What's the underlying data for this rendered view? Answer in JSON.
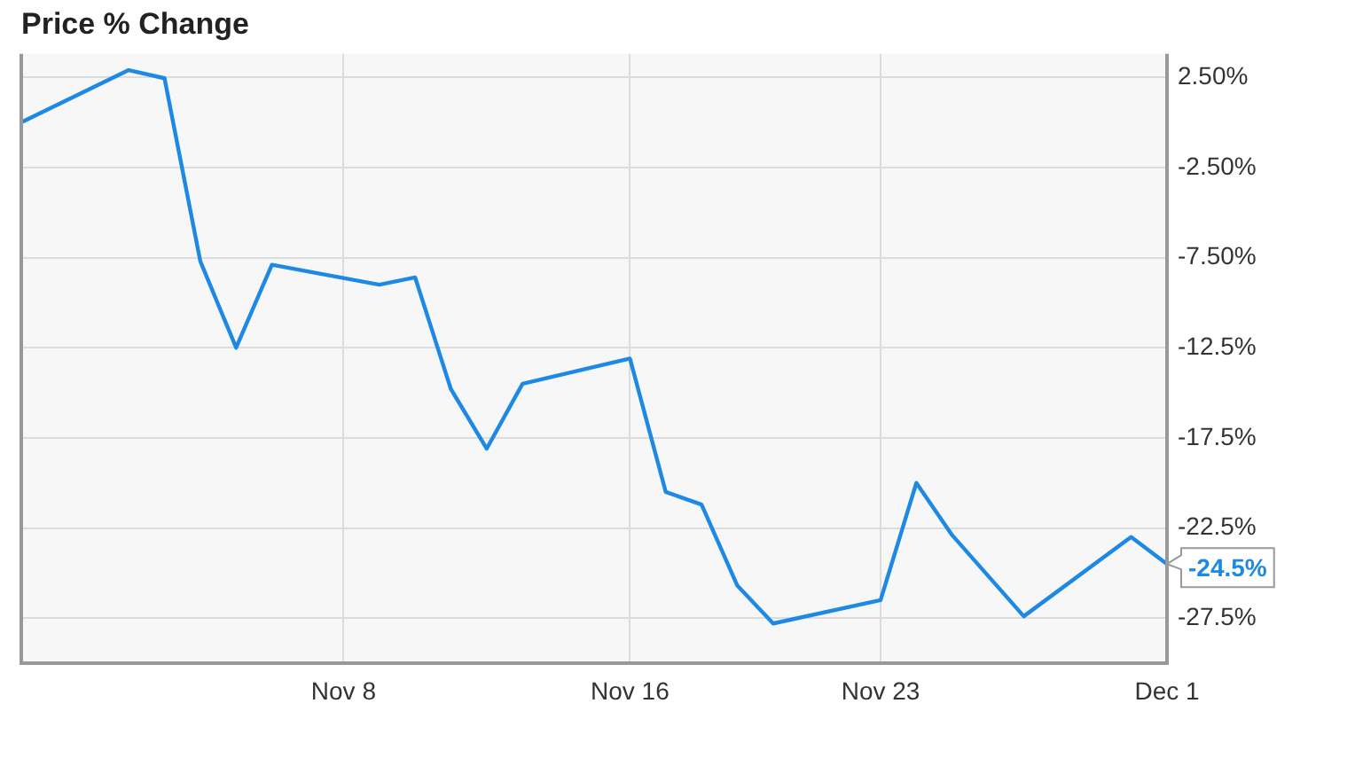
{
  "chart_data": {
    "type": "line",
    "title": "Price % Change",
    "x": [
      "--10-30",
      "--11-02",
      "--11-03",
      "--11-04",
      "--11-05",
      "--11-06",
      "--11-09",
      "--11-10",
      "--11-11",
      "--11-12",
      "--11-13",
      "--11-16",
      "--11-17",
      "--11-18",
      "--11-19",
      "--11-20",
      "--11-23",
      "--11-24",
      "--11-25",
      "--11-27",
      "--11-30",
      "--12-01"
    ],
    "series": [
      {
        "color": "#1e88e5",
        "values": [
          0.0,
          2.9,
          2.45,
          -7.7,
          -12.5,
          -7.9,
          -9.0,
          -8.6,
          -14.8,
          -18.1,
          -14.5,
          -13.1,
          -20.5,
          -21.2,
          -25.7,
          -27.8,
          -26.5,
          -20.0,
          -22.9,
          -27.4,
          -23.0,
          -24.5
        ],
        "value_labels": [
          null,
          null,
          null,
          null,
          null,
          null,
          null,
          null,
          null,
          null,
          null,
          null,
          null,
          null,
          null,
          null,
          null,
          null,
          null,
          null,
          null,
          "-24.5%"
        ]
      }
    ],
    "xlim": [
      "--10-30",
      "--12-01"
    ],
    "xticks": [
      {
        "value": "--11-08",
        "label": "Nov 8"
      },
      {
        "value": "--11-16",
        "label": "Nov 16"
      },
      {
        "value": "--11-23",
        "label": "Nov 23"
      },
      {
        "value": "--12-01",
        "label": "Dec 1"
      }
    ],
    "ylim": [
      -30,
      3.8
    ],
    "yticks": [
      {
        "value": 2.5,
        "label": "2.50%"
      },
      {
        "value": -2.5,
        "label": "-2.50%"
      },
      {
        "value": -7.5,
        "label": "-7.50%"
      },
      {
        "value": -12.5,
        "label": "-12.5%"
      },
      {
        "value": -17.5,
        "label": "-17.5%"
      },
      {
        "value": -22.5,
        "label": "-22.5%"
      },
      {
        "value": -27.5,
        "label": "-27.5%"
      }
    ],
    "grid": true,
    "legend": false,
    "marker": "none",
    "line_style": "solid"
  }
}
